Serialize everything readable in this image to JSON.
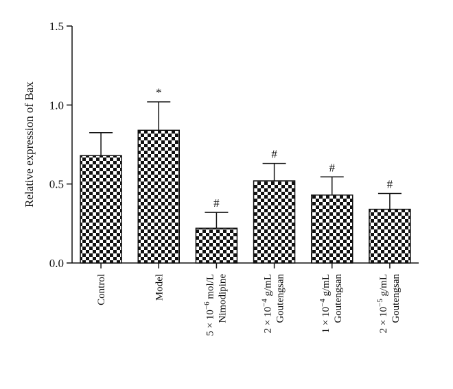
{
  "chart_data": {
    "type": "bar",
    "title": "",
    "xlabel": "",
    "ylabel": "Relative expression of Bax",
    "ylim": [
      0,
      1.5
    ],
    "yticks": [
      "0.0",
      "0.5",
      "1.0",
      "1.5"
    ],
    "ytick_values": [
      0,
      0.5,
      1.0,
      1.5
    ],
    "grid": false,
    "legend": "none",
    "bar_pattern": "checkerboard",
    "bar_color": "#111111",
    "categories": [
      {
        "lines": [
          "Control"
        ]
      },
      {
        "lines": [
          "Model"
        ]
      },
      {
        "lines": [
          "5 × 10^−6 mol/L",
          "Nimodipine"
        ],
        "base": "5 × 10",
        "exp": "−6",
        "rest": " mol/L",
        "line2": "Nimodipine"
      },
      {
        "lines": [
          "2 × 10^−4 g/mL",
          "Goutengsan"
        ],
        "base": "2 × 10",
        "exp": "−4",
        "rest": " g/mL",
        "line2": "Goutengsan"
      },
      {
        "lines": [
          "1 × 10^−4 g/mL",
          "Goutengsan"
        ],
        "base": "1 × 10",
        "exp": "−4",
        "rest": " g/mL",
        "line2": "Goutengsan"
      },
      {
        "lines": [
          "2 × 10^−5 g/mL",
          "Goutengsan"
        ],
        "base": "2 × 10",
        "exp": "−5",
        "rest": " g/mL",
        "line2": "Goutengsan"
      }
    ],
    "values": [
      0.68,
      0.84,
      0.22,
      0.52,
      0.43,
      0.34
    ],
    "errors": [
      0.145,
      0.18,
      0.1,
      0.11,
      0.115,
      0.1
    ],
    "annotations": [
      "",
      "*",
      "#",
      "#",
      "#",
      "#"
    ]
  }
}
